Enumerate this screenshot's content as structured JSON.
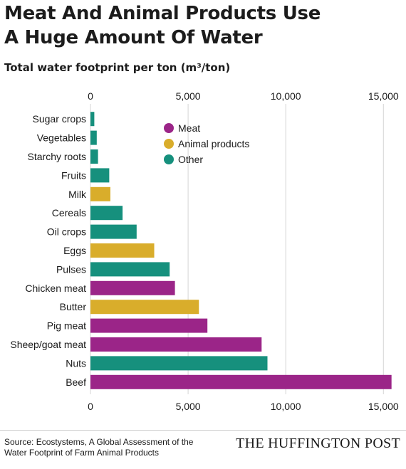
{
  "title_line1": "Meat And Animal Products Use",
  "title_line2": "A Huge Amount Of Water",
  "subtitle": "Total water footprint per ton (m³/ton)",
  "source": "Source: Ecostystems, A Global Assessment of the Water Footprint of Farm Animal Products",
  "brand": "THE HUFFINGTON POST",
  "colors": {
    "meat": "#9b2588",
    "animal": "#d9ad2b",
    "other": "#16907d",
    "grid": "#d6d6d6"
  },
  "chart_data": {
    "type": "bar",
    "orientation": "horizontal",
    "xlim": [
      0,
      15500
    ],
    "xticks": [
      0,
      5000,
      10000,
      15000
    ],
    "tick_labels": [
      "0",
      "5,000",
      "10,000",
      "15,000"
    ],
    "grid": true,
    "legend": {
      "placement": "top-center",
      "entries": [
        {
          "label": "Meat",
          "group": "meat"
        },
        {
          "label": "Animal products",
          "group": "animal"
        },
        {
          "label": "Other",
          "group": "other"
        }
      ]
    },
    "categories": [
      "Sugar crops",
      "Vegetables",
      "Starchy roots",
      "Fruits",
      "Milk",
      "Cereals",
      "Oil crops",
      "Eggs",
      "Pulses",
      "Chicken meat",
      "Butter",
      "Pig meat",
      "Sheep/goat meat",
      "Nuts",
      "Beef"
    ],
    "values": [
      197,
      322,
      387,
      962,
      1020,
      1644,
      2364,
      3265,
      4055,
      4325,
      5553,
      5988,
      8763,
      9063,
      15415
    ],
    "groups": [
      "other",
      "other",
      "other",
      "other",
      "animal",
      "other",
      "other",
      "animal",
      "other",
      "meat",
      "animal",
      "meat",
      "meat",
      "other",
      "meat"
    ]
  }
}
